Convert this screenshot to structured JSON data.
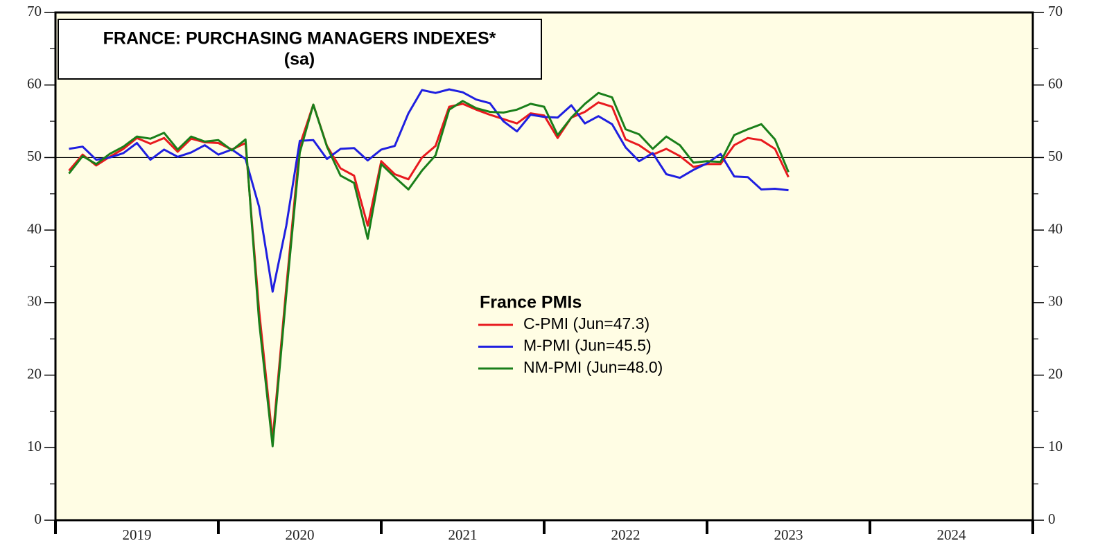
{
  "chart_data": {
    "type": "line",
    "title": "FRANCE: PURCHASING MANAGERS INDEXES*",
    "subtitle": "(sa)",
    "legend_title": "France PMIs",
    "x": [
      2019.083,
      2019.167,
      2019.25,
      2019.333,
      2019.417,
      2019.5,
      2019.583,
      2019.667,
      2019.75,
      2019.833,
      2019.917,
      2020,
      2020.083,
      2020.167,
      2020.25,
      2020.333,
      2020.417,
      2020.5,
      2020.583,
      2020.667,
      2020.75,
      2020.833,
      2020.917,
      2021,
      2021.083,
      2021.167,
      2021.25,
      2021.333,
      2021.417,
      2021.5,
      2021.583,
      2021.667,
      2021.75,
      2021.833,
      2021.917,
      2022,
      2022.083,
      2022.167,
      2022.25,
      2022.333,
      2022.417,
      2022.5,
      2022.583,
      2022.667,
      2022.75,
      2022.833,
      2022.917,
      2023,
      2023.083,
      2023.167,
      2023.25,
      2023.333,
      2023.417,
      2023.5
    ],
    "series": [
      {
        "name": "C-PMI (Jun=47.3)",
        "color": "#e8191e",
        "values": [
          48.2,
          50.4,
          48.9,
          50.1,
          51.2,
          52.7,
          51.9,
          52.7,
          50.8,
          52.6,
          52.1,
          52.0,
          51.1,
          52.0,
          28.9,
          11.1,
          32.1,
          51.7,
          57.3,
          51.6,
          48.5,
          47.5,
          40.6,
          49.5,
          47.7,
          47.0,
          50.0,
          51.6,
          57.0,
          57.4,
          56.6,
          55.9,
          55.3,
          54.7,
          56.1,
          55.8,
          52.7,
          55.5,
          56.3,
          57.6,
          57.0,
          52.5,
          51.7,
          50.4,
          51.2,
          50.2,
          48.7,
          49.1,
          49.1,
          51.7,
          52.7,
          52.4,
          51.2,
          47.3
        ]
      },
      {
        "name": "M-PMI (Jun=45.5)",
        "color": "#1f1fe0",
        "values": [
          51.2,
          51.5,
          49.7,
          50.0,
          50.6,
          52.0,
          49.7,
          51.1,
          50.1,
          50.7,
          51.7,
          50.4,
          51.1,
          49.8,
          43.2,
          31.5,
          40.6,
          52.3,
          52.4,
          49.8,
          51.2,
          51.3,
          49.6,
          51.1,
          51.6,
          56.1,
          59.3,
          58.9,
          59.4,
          59.0,
          58.0,
          57.5,
          55.0,
          53.6,
          55.9,
          55.6,
          55.5,
          57.2,
          54.7,
          55.7,
          54.6,
          51.4,
          49.5,
          50.6,
          47.7,
          47.2,
          48.3,
          49.2,
          50.5,
          47.4,
          47.3,
          45.6,
          45.7,
          45.5
        ]
      },
      {
        "name": "NM-PMI (Jun=48.0)",
        "color": "#1a7f1a",
        "values": [
          47.8,
          50.2,
          49.1,
          50.5,
          51.5,
          52.9,
          52.6,
          53.4,
          51.1,
          52.9,
          52.2,
          52.4,
          51.0,
          52.5,
          27.4,
          10.2,
          31.1,
          50.7,
          57.3,
          51.5,
          47.5,
          46.5,
          38.8,
          49.1,
          47.3,
          45.6,
          48.2,
          50.3,
          56.6,
          57.8,
          56.8,
          56.3,
          56.2,
          56.6,
          57.4,
          57.0,
          53.1,
          55.5,
          57.4,
          58.9,
          58.3,
          53.9,
          53.2,
          51.2,
          52.9,
          51.7,
          49.3,
          49.5,
          49.4,
          53.1,
          53.9,
          54.6,
          52.5,
          48.0
        ]
      }
    ],
    "xlim": [
      2019,
      2025
    ],
    "xticks": [
      2019,
      2020,
      2021,
      2022,
      2023,
      2024,
      2025
    ],
    "xlabels": [
      {
        "value": 2019.5,
        "label": "2019"
      },
      {
        "value": 2020.5,
        "label": "2020"
      },
      {
        "value": 2021.5,
        "label": "2021"
      },
      {
        "value": 2022.5,
        "label": "2022"
      },
      {
        "value": 2023.5,
        "label": "2023"
      },
      {
        "value": 2024.5,
        "label": "2024"
      }
    ],
    "ylim": [
      0,
      70
    ],
    "yticks": [
      0,
      10,
      20,
      30,
      40,
      50,
      60,
      70
    ],
    "yminor": [
      5,
      15,
      25,
      35,
      45,
      55,
      65
    ],
    "y2lim": [
      0,
      70
    ],
    "y2ticks": [
      0,
      10,
      20,
      30,
      40,
      50,
      60,
      70
    ],
    "hline": 50
  }
}
